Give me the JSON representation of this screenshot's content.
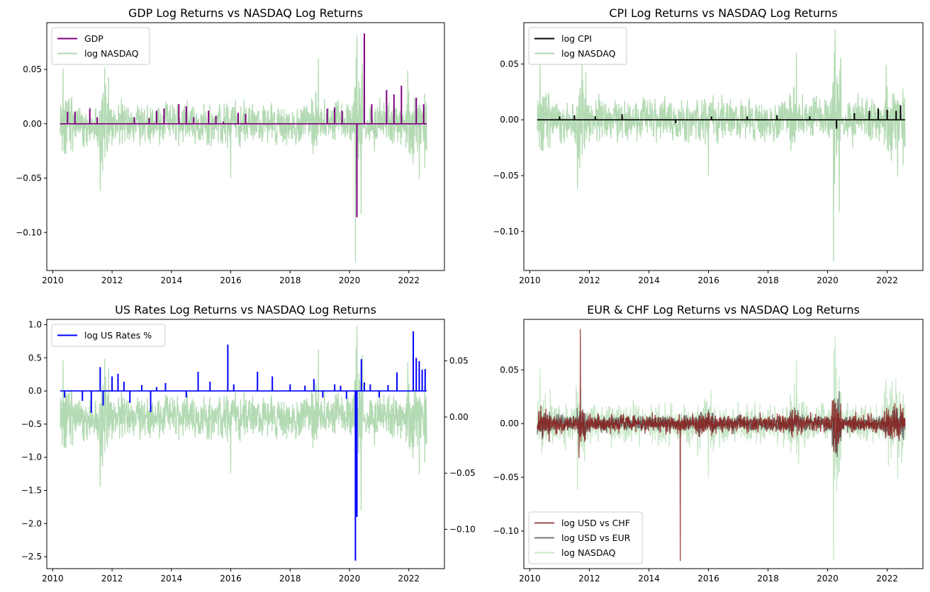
{
  "chart_data": [
    {
      "type": "line",
      "title": "GDP Log Returns vs NASDAQ Log Returns",
      "xlim": [
        2009.8,
        2023.2
      ],
      "xticks": [
        2010,
        2012,
        2014,
        2016,
        2018,
        2020,
        2022
      ],
      "ylim": [
        -0.135,
        0.093
      ],
      "yticks": [
        0.05,
        0.0,
        -0.05,
        -0.1
      ],
      "ytick_labels": [
        "0.05",
        "0.00",
        "−0.05",
        "−0.10"
      ],
      "legend_position": "upper-left",
      "series": [
        {
          "name": "GDP",
          "kind": "spikes",
          "color": "#800080",
          "x": [
            2010.25,
            2010.5,
            2010.75,
            2011.25,
            2011.5,
            2012.75,
            2013.25,
            2013.5,
            2013.75,
            2014.25,
            2014.5,
            2014.75,
            2015.25,
            2015.5,
            2015.75,
            2016.25,
            2016.5,
            2019.25,
            2019.5,
            2019.75,
            2020.25,
            2020.5,
            2020.75,
            2021.0,
            2021.25,
            2021.5,
            2021.75,
            2022.25,
            2022.5
          ],
          "y": [
            0.0,
            0.011,
            0.011,
            0.014,
            0.006,
            0.006,
            0.005,
            0.012,
            0.014,
            0.018,
            0.016,
            0.006,
            0.012,
            0.007,
            0.002,
            0.01,
            0.009,
            0.014,
            0.015,
            0.012,
            -0.086,
            0.083,
            0.018,
            0.0,
            0.031,
            0.027,
            0.035,
            0.024,
            0.018
          ]
        },
        {
          "name": "log NASDAQ",
          "kind": "noise",
          "color": "#b3dab3",
          "x_start": 2010.25,
          "x_end": 2022.6
        }
      ]
    },
    {
      "type": "line",
      "title": "CPI Log Returns vs NASDAQ Log Returns",
      "xlim": [
        2009.8,
        2023.2
      ],
      "xticks": [
        2010,
        2012,
        2014,
        2016,
        2018,
        2020,
        2022
      ],
      "ylim": [
        -0.135,
        0.087
      ],
      "yticks": [
        0.05,
        0.0,
        -0.05,
        -0.1
      ],
      "ytick_labels": [
        "0.05",
        "0.00",
        "−0.05",
        "−0.10"
      ],
      "legend_position": "upper-left",
      "series": [
        {
          "name": "log CPI",
          "kind": "spikes",
          "color": "#000000",
          "x": [
            2011.0,
            2011.5,
            2012.2,
            2013.1,
            2014.9,
            2016.1,
            2017.3,
            2018.3,
            2019.4,
            2020.3,
            2020.9,
            2021.4,
            2021.7,
            2022.0,
            2022.3,
            2022.45
          ],
          "y": [
            0.003,
            0.004,
            0.003,
            0.005,
            -0.003,
            0.003,
            0.003,
            0.004,
            0.003,
            -0.008,
            0.006,
            0.008,
            0.01,
            0.009,
            0.008,
            0.013
          ]
        },
        {
          "name": "log NASDAQ",
          "kind": "noise",
          "color": "#b3dab3",
          "x_start": 2010.25,
          "x_end": 2022.6
        }
      ]
    },
    {
      "type": "line",
      "title": "US Rates Log Returns vs NASDAQ Log Returns",
      "xlim": [
        2009.8,
        2023.2
      ],
      "xticks": [
        2010,
        2012,
        2014,
        2016,
        2018,
        2020,
        2022
      ],
      "ylim": [
        -2.68,
        1.08
      ],
      "yticks": [
        1.0,
        0.5,
        0.0,
        -0.5,
        -1.0,
        -1.5,
        -2.0,
        -2.5
      ],
      "ytick_labels": [
        "1.0",
        "0.5",
        "0.0",
        "−0.5",
        "−1.0",
        "−1.5",
        "−2.0",
        "−2.5"
      ],
      "y2lim": [
        -0.135,
        0.087
      ],
      "y2ticks": [
        0.05,
        0.0,
        -0.05,
        -0.1
      ],
      "y2tick_labels": [
        "0.05",
        "0.00",
        "−0.05",
        "−0.10"
      ],
      "legend_position": "upper-left",
      "series": [
        {
          "name": "log US Rates %",
          "kind": "spikes",
          "color": "#0000ff",
          "x": [
            2010.4,
            2011.0,
            2011.3,
            2011.6,
            2011.7,
            2012.0,
            2012.2,
            2012.4,
            2012.6,
            2013.0,
            2013.3,
            2013.5,
            2013.8,
            2014.5,
            2014.9,
            2015.3,
            2015.9,
            2016.1,
            2016.9,
            2017.4,
            2018.0,
            2018.5,
            2018.8,
            2019.1,
            2019.5,
            2019.7,
            2019.9,
            2020.2,
            2020.25,
            2020.4,
            2020.5,
            2020.7,
            2021.0,
            2021.3,
            2021.6,
            2022.15,
            2022.25,
            2022.35,
            2022.45,
            2022.55
          ],
          "y": [
            -0.1,
            -0.15,
            -0.33,
            0.36,
            -0.22,
            0.22,
            0.26,
            0.14,
            -0.18,
            0.09,
            -0.32,
            0.06,
            0.12,
            -0.1,
            0.29,
            0.14,
            0.7,
            0.1,
            0.29,
            0.22,
            0.1,
            0.08,
            0.18,
            -0.1,
            0.1,
            0.08,
            -0.12,
            -2.56,
            -1.9,
            0.48,
            0.13,
            0.1,
            -0.1,
            0.09,
            0.28,
            0.9,
            0.5,
            0.45,
            0.32,
            0.33
          ]
        },
        {
          "name": "log NASDAQ",
          "kind": "noise",
          "color": "#b3dab3",
          "x_start": 2010.25,
          "x_end": 2022.6,
          "axis": "right"
        }
      ]
    },
    {
      "type": "line",
      "title": "EUR & CHF Log Returns vs NASDAQ Log Returns",
      "xlim": [
        2009.8,
        2023.2
      ],
      "xticks": [
        2010,
        2012,
        2014,
        2016,
        2018,
        2020,
        2022
      ],
      "ylim": [
        -0.135,
        0.097
      ],
      "yticks": [
        0.05,
        0.0,
        -0.05,
        -0.1
      ],
      "ytick_labels": [
        "0.05",
        "0.00",
        "−0.05",
        "−0.10"
      ],
      "legend_position": "lower-left",
      "series": [
        {
          "name": "log USD vs CHF",
          "kind": "noise",
          "color": "#8b1a1a",
          "x_start": 2010.25,
          "x_end": 2022.6,
          "events": [
            [
              2011.7,
              0.088
            ],
            [
              2015.05,
              -0.128
            ],
            [
              2011.65,
              -0.032
            ]
          ]
        },
        {
          "name": "log USD vs EUR",
          "kind": "noise",
          "color": "#555555",
          "x_start": 2010.25,
          "x_end": 2022.6
        },
        {
          "name": "log NASDAQ",
          "kind": "noise",
          "color": "#c8e6c8",
          "x_start": 2010.25,
          "x_end": 2022.6
        }
      ]
    }
  ]
}
